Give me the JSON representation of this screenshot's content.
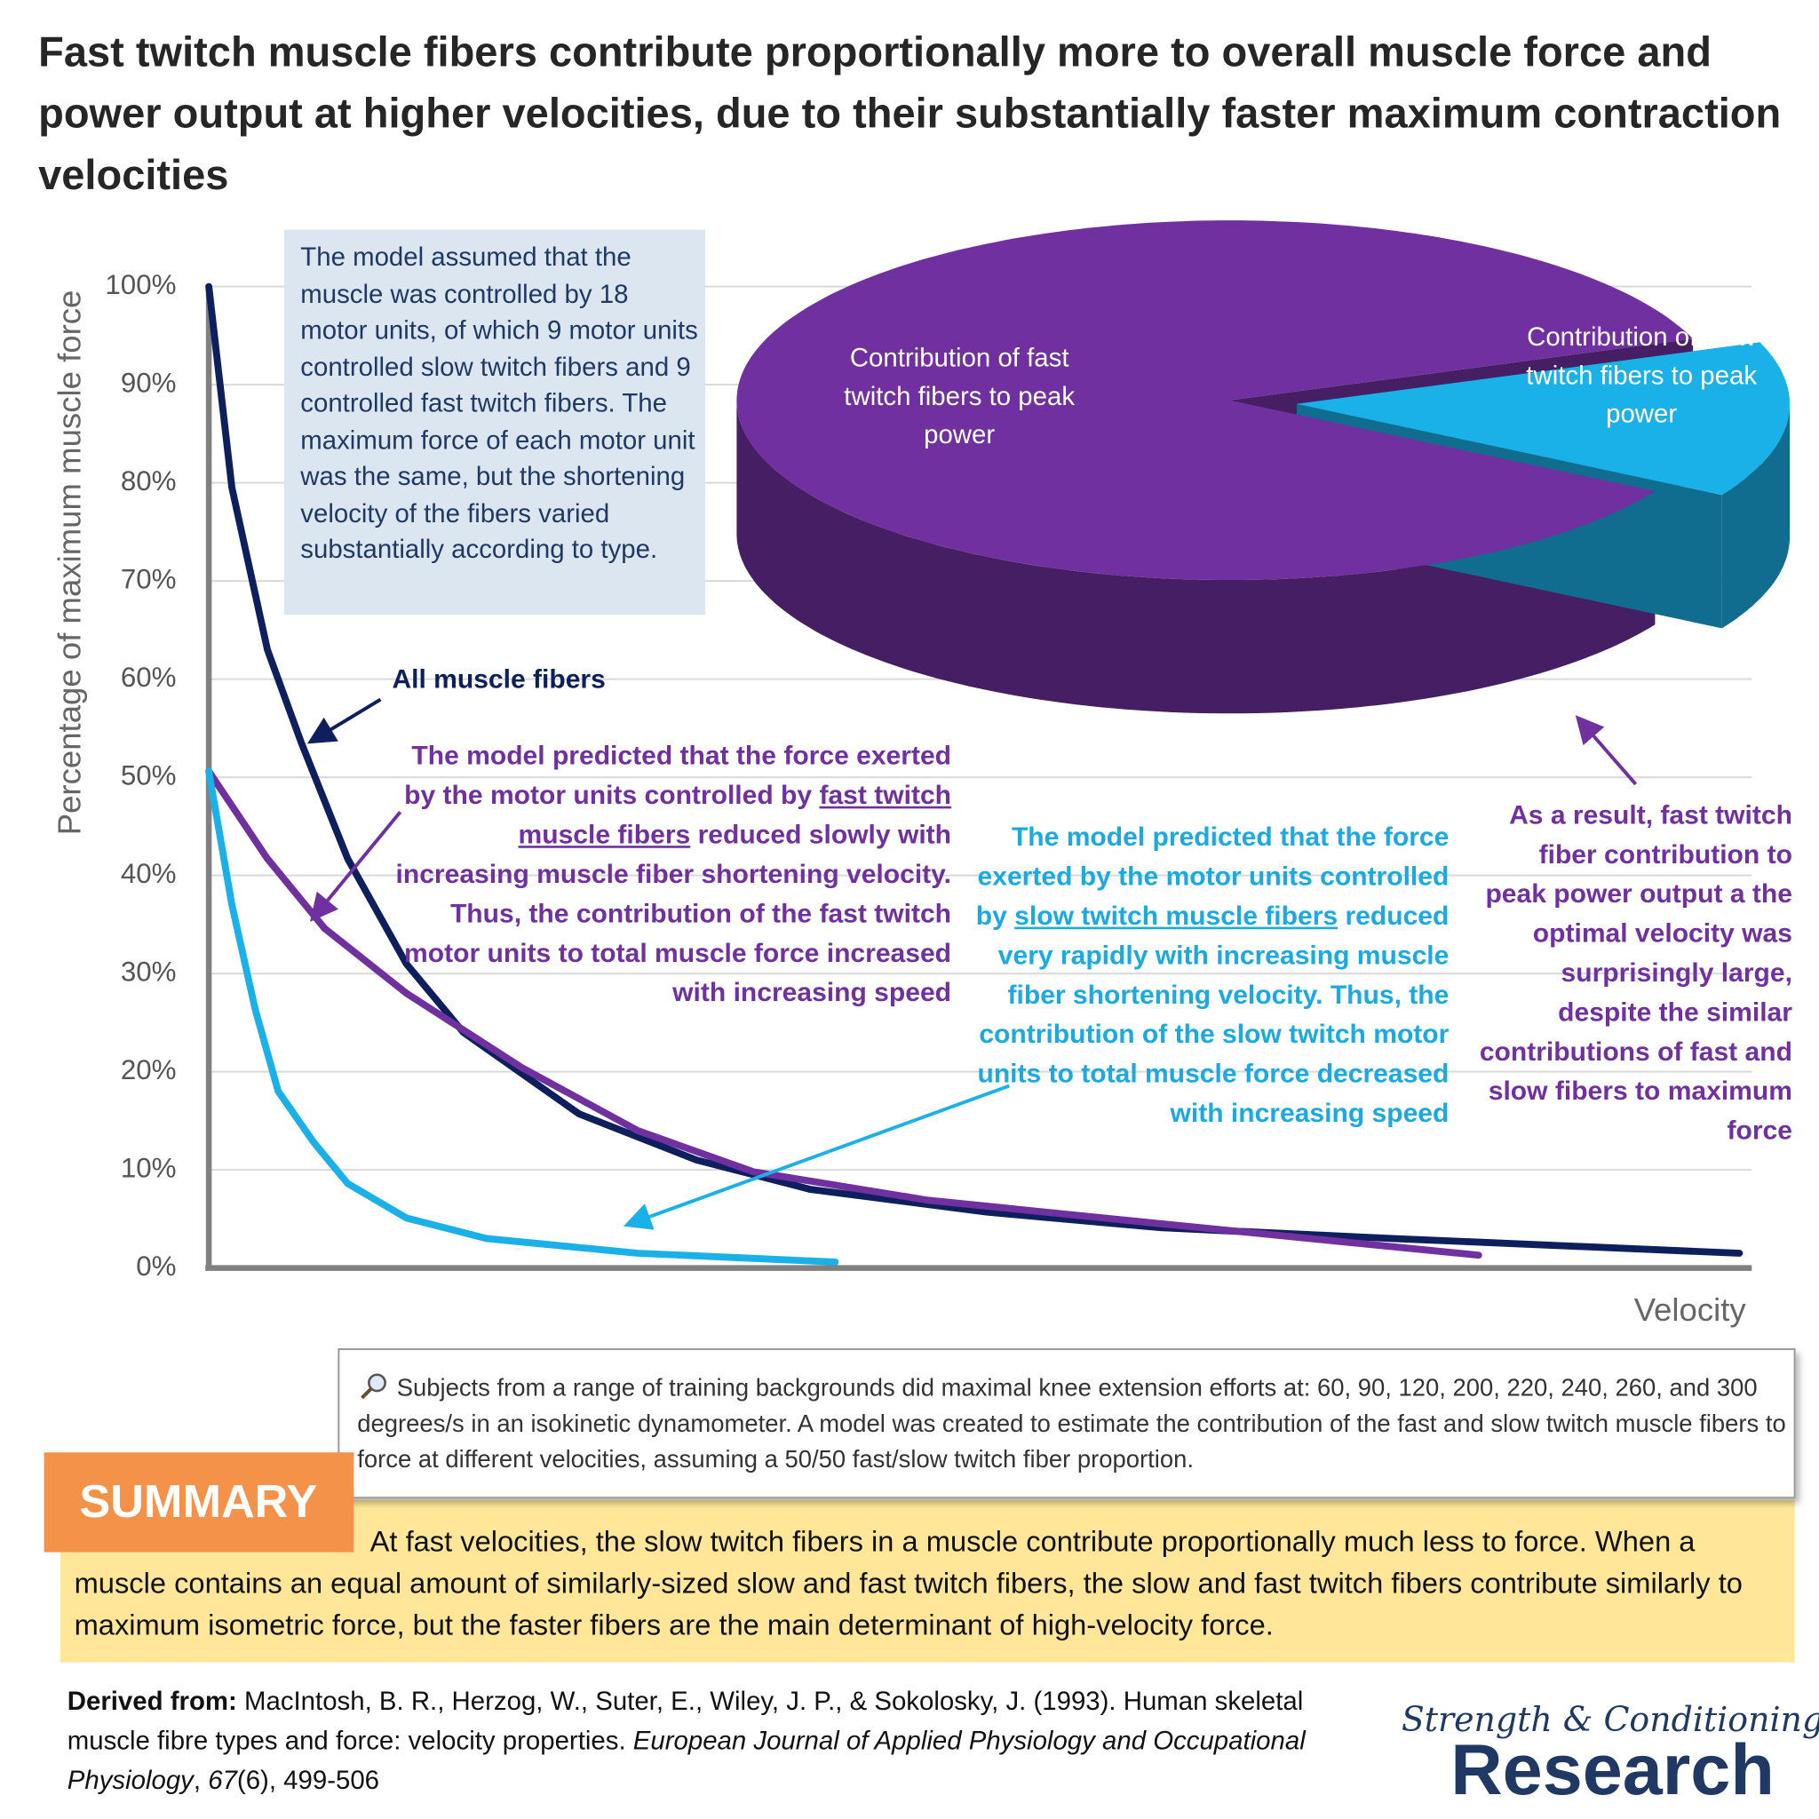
{
  "header": {
    "title": "Fast twitch muscle fibers contribute proportionally more to overall muscle force and power output at higher velocities, due to their substantially faster maximum contraction velocities"
  },
  "chart_data": [
    {
      "type": "line",
      "y_label": "Percentage of maximum muscle force",
      "x_label": "Velocity",
      "xlim": [
        0,
        100
      ],
      "ylim": [
        0,
        100
      ],
      "yticks": [
        {
          "value": 0,
          "label": "0%"
        },
        {
          "value": 10,
          "label": "10%"
        },
        {
          "value": 20,
          "label": "20%"
        },
        {
          "value": 30,
          "label": "30%"
        },
        {
          "value": 40,
          "label": "40%"
        },
        {
          "value": 50,
          "label": "50%"
        },
        {
          "value": 60,
          "label": "60%"
        },
        {
          "value": 70,
          "label": "70%"
        },
        {
          "value": 80,
          "label": "80%"
        },
        {
          "value": 90,
          "label": "90%"
        },
        {
          "value": 100,
          "label": "100%"
        }
      ],
      "grid": true,
      "series": [
        {
          "name": "All muscle fibers",
          "color": "#0d1f5c",
          "x": [
            0,
            1.5,
            3.8,
            6,
            9,
            12.8,
            16.5,
            24,
            31.6,
            39,
            50.4,
            61.7,
            76.7,
            99.2
          ],
          "values": [
            100,
            79.5,
            63,
            53.5,
            41.7,
            31,
            24,
            15.7,
            11,
            8,
            5.7,
            4.1,
            3,
            1.5
          ]
        },
        {
          "color": "#7030a0",
          "x": [
            0,
            3.8,
            7.5,
            12.8,
            20.3,
            27.8,
            35.3,
            46.6,
            61.7,
            82.3
          ],
          "values": [
            50.6,
            41.7,
            34.6,
            28,
            20.4,
            14,
            9.8,
            6.9,
            4.5,
            1.3
          ]
        },
        {
          "color": "#1ab0e8",
          "x": [
            0,
            1.5,
            3,
            4.5,
            6.8,
            9,
            12.8,
            18,
            27.8,
            40.6
          ],
          "values": [
            50.6,
            37,
            26.4,
            18,
            12.8,
            8.6,
            5.1,
            3,
            1.5,
            0.6
          ]
        }
      ],
      "model_note": "The model assumed that the muscle was controlled by 18 motor units, of which 9 motor units controlled slow twitch fibers and 9 controlled fast twitch fibers. The maximum force of each motor unit was the same, but the shortening velocity of the fibers varied substantially according to type.",
      "fast_note": [
        "The model predicted that the force exerted by the motor units controlled by ",
        "fast twitch muscle fibers",
        " reduced slowly with increasing muscle fiber shortening velocity. Thus, the contribution of the fast twitch motor units to total muscle force increased with increasing speed"
      ],
      "slow_note": [
        "The model predicted that the force exerted by the motor units controlled by ",
        "slow twitch muscle fibers",
        " reduced very rapidly with increasing muscle fiber shortening velocity. Thus, the contribution of the slow twitch motor units to total muscle force decreased with increasing speed"
      ],
      "result_note": "As a result, fast twitch fiber contribution to peak power output a the optimal velocity was surprisingly large, despite the similar contributions of fast and slow fibers to maximum force"
    },
    {
      "type": "pie",
      "categories": [
        "Contribution of fast twitch fibers to peak power",
        "Contribution of slow twitch fibers to peak power"
      ],
      "values": [
        86,
        14
      ],
      "colors": [
        "#7030a0",
        "#1ab0e8"
      ]
    }
  ],
  "note": {
    "text": "Subjects from a range of training backgrounds did maximal knee extension efforts at: 60, 90, 120, 200, 220, 240, 260, and 300 degrees/s in an isokinetic dynamometer. A model was created to estimate the contribution of the fast and slow twitch muscle fibers to force at different velocities, assuming a 50/50 fast/slow twitch fiber proportion."
  },
  "summary": {
    "label": "SUMMARY",
    "text": "At fast velocities, the slow twitch fibers in a muscle contribute proportionally much less to force. When a muscle contains an equal amount of similarly-sized slow and fast twitch fibers, the slow and fast twitch fibers contribute similarly to maximum isometric force, but the faster fibers are the main determinant of high-velocity force."
  },
  "citation": {
    "parts": [
      "Derived from:",
      " MacIntosh, B. R., Herzog, W., Suter, E., Wiley, J. P., & Sokolosky, J. (1993). Human skeletal muscle fibre types and force: velocity properties. ",
      "European Journal of Applied Physiology and Occupational Physiology",
      ", ",
      "67",
      "(6), 499-506"
    ]
  },
  "logo": {
    "line1": "Strength & Conditioning",
    "line2": "Research"
  }
}
